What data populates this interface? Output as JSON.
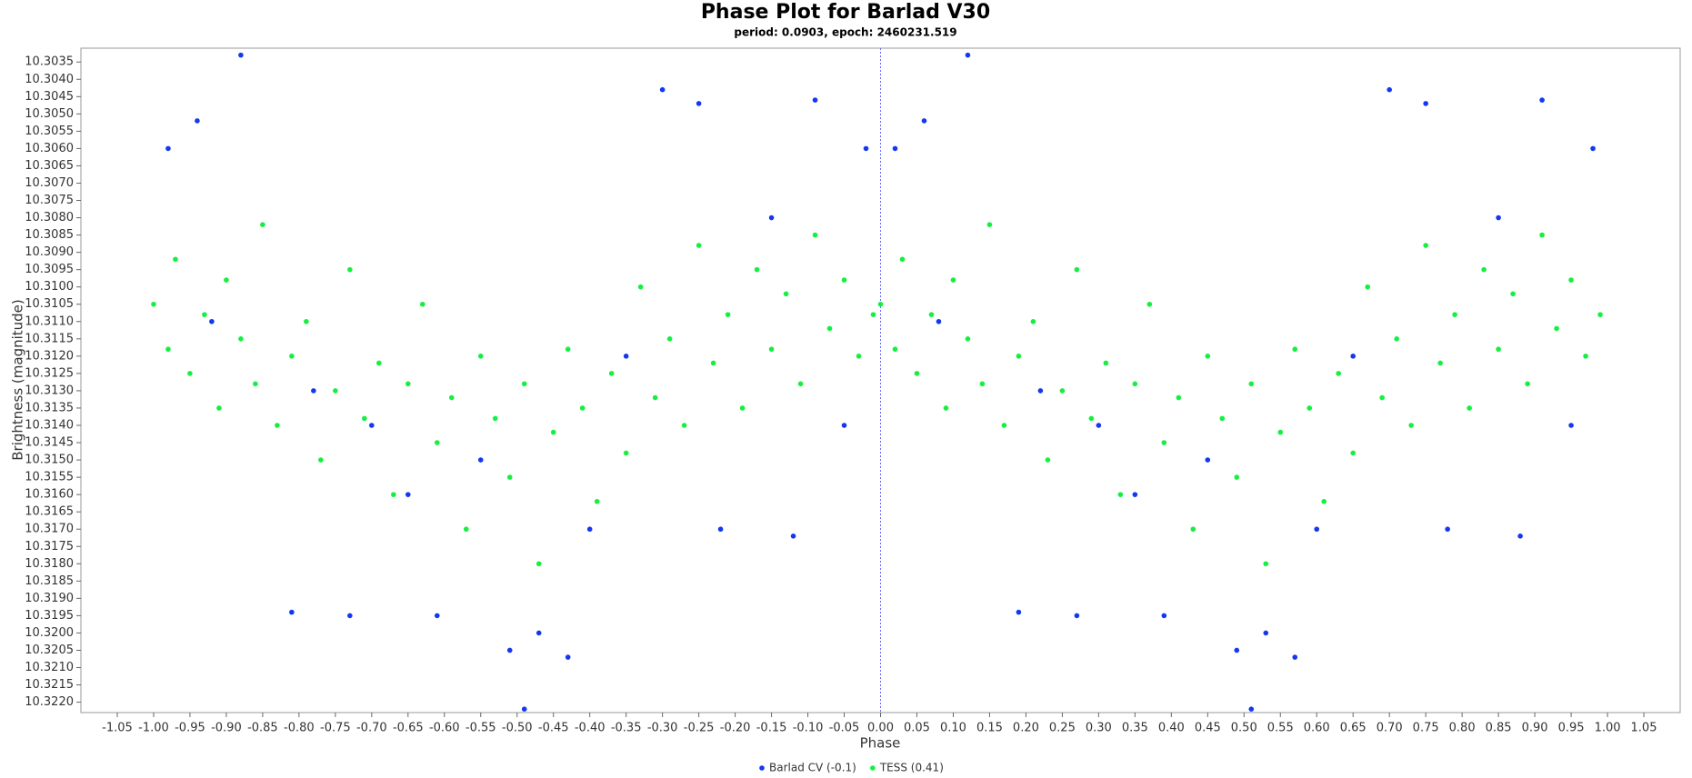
{
  "chart_data": {
    "type": "scatter",
    "title": "Phase Plot for Barlad V30",
    "subtitle": "period: 0.0903, epoch: 2460231.519",
    "x_label": "Phase",
    "y_label": "Brightness (magnitude)",
    "xlim": [
      -1.1,
      1.1
    ],
    "ylim": [
      10.3031,
      10.3223
    ],
    "y_inverted": true,
    "vline": 0,
    "legend": "bottom",
    "xticks": [
      -1.05,
      {
        "value": -1,
        "label": "-1.00"
      },
      -0.95,
      {
        "value": -0.9,
        "label": "-0.90"
      },
      -0.85,
      {
        "value": -0.8,
        "label": "-0.80"
      },
      -0.75,
      {
        "value": -0.7,
        "label": "-0.70"
      },
      -0.65,
      {
        "value": -0.6,
        "label": "-0.60"
      },
      -0.55,
      {
        "value": -0.5,
        "label": "-0.50"
      },
      -0.45,
      {
        "value": -0.4,
        "label": "-0.40"
      },
      -0.35,
      {
        "value": -0.3,
        "label": "-0.30"
      },
      -0.25,
      {
        "value": -0.2,
        "label": "-0.20"
      },
      -0.15,
      {
        "value": -0.1,
        "label": "-0.10"
      },
      -0.05,
      {
        "value": 0,
        "label": "0.00"
      },
      0.05,
      {
        "value": 0.1,
        "label": "0.10"
      },
      0.15,
      {
        "value": 0.2,
        "label": "0.20"
      },
      0.25,
      {
        "value": 0.3,
        "label": "0.30"
      },
      0.35,
      {
        "value": 0.4,
        "label": "0.40"
      },
      0.45,
      {
        "value": 0.5,
        "label": "0.50"
      },
      0.55,
      {
        "value": 0.6,
        "label": "0.60"
      },
      0.65,
      {
        "value": 0.7,
        "label": "0.70"
      },
      0.75,
      {
        "value": 0.8,
        "label": "0.80"
      },
      0.85,
      {
        "value": 0.9,
        "label": "0.90"
      },
      0.95,
      {
        "value": 1,
        "label": "1.00"
      },
      1.05
    ],
    "yticks": [
      10.3035,
      {
        "value": 10.304,
        "label": "10.3040"
      },
      10.3045,
      {
        "value": 10.305,
        "label": "10.3050"
      },
      10.3055,
      {
        "value": 10.306,
        "label": "10.3060"
      },
      10.3065,
      {
        "value": 10.307,
        "label": "10.3070"
      },
      10.3075,
      {
        "value": 10.308,
        "label": "10.3080"
      },
      10.3085,
      {
        "value": 10.309,
        "label": "10.3090"
      },
      10.3095,
      {
        "value": 10.31,
        "label": "10.3100"
      },
      10.3105,
      {
        "value": 10.311,
        "label": "10.3110"
      },
      10.3115,
      {
        "value": 10.312,
        "label": "10.3120"
      },
      10.3125,
      {
        "value": 10.313,
        "label": "10.3130"
      },
      10.3135,
      {
        "value": 10.314,
        "label": "10.3140"
      },
      10.3145,
      {
        "value": 10.315,
        "label": "10.3150"
      },
      10.3155,
      {
        "value": 10.316,
        "label": "10.3160"
      },
      10.3165,
      {
        "value": 10.317,
        "label": "10.3170"
      },
      10.3175,
      {
        "value": 10.318,
        "label": "10.3180"
      },
      10.3185,
      {
        "value": 10.319,
        "label": "10.3190"
      },
      10.3195,
      {
        "value": 10.32,
        "label": "10.3200"
      },
      10.3205,
      {
        "value": 10.321,
        "label": "10.3210"
      },
      10.3215,
      {
        "value": 10.322,
        "label": "10.3220"
      }
    ],
    "series": [
      {
        "name": "TESS (0.41)",
        "color": "#14f040",
        "x": [
          0.0,
          0.02,
          0.03,
          0.05,
          0.07,
          0.09,
          0.1,
          0.12,
          0.14,
          0.15,
          0.17,
          0.19,
          0.21,
          0.23,
          0.25,
          0.27,
          0.29,
          0.31,
          0.33,
          0.35,
          0.37,
          0.39,
          0.41,
          0.43,
          0.45,
          0.47,
          0.49,
          0.51,
          0.53,
          0.55,
          0.57,
          0.59,
          0.61,
          0.63,
          0.65,
          0.67,
          0.69,
          0.71,
          0.73,
          0.75,
          0.77,
          0.79,
          0.81,
          0.83,
          0.85,
          0.87,
          0.89,
          0.91,
          0.93,
          0.95,
          0.97,
          0.99,
          -1.0,
          -0.98,
          -0.97,
          -0.95,
          -0.93,
          -0.91,
          -0.9,
          -0.88,
          -0.86,
          -0.85,
          -0.83,
          -0.81,
          -0.79,
          -0.77,
          -0.75,
          -0.73,
          -0.71,
          -0.69,
          -0.67,
          -0.65,
          -0.63,
          -0.61,
          -0.59,
          -0.57,
          -0.55,
          -0.53,
          -0.51,
          -0.49,
          -0.47,
          -0.45,
          -0.43,
          -0.41,
          -0.39,
          -0.37,
          -0.35,
          -0.33,
          -0.31,
          -0.29,
          -0.27,
          -0.25,
          -0.23,
          -0.21,
          -0.19,
          -0.17,
          -0.15,
          -0.13,
          -0.11,
          -0.09,
          -0.07,
          -0.05,
          -0.03,
          -0.01
        ],
        "values": [
          10.3105,
          10.3118,
          10.3092,
          10.3125,
          10.3108,
          10.3135,
          10.3098,
          10.3115,
          10.3128,
          10.3082,
          10.314,
          10.312,
          10.311,
          10.315,
          10.313,
          10.3095,
          10.3138,
          10.3122,
          10.316,
          10.3128,
          10.3105,
          10.3145,
          10.3132,
          10.317,
          10.312,
          10.3138,
          10.3155,
          10.3128,
          10.318,
          10.3142,
          10.3118,
          10.3135,
          10.3162,
          10.3125,
          10.3148,
          10.31,
          10.3132,
          10.3115,
          10.314,
          10.3088,
          10.3122,
          10.3108,
          10.3135,
          10.3095,
          10.3118,
          10.3102,
          10.3128,
          10.3085,
          10.3112,
          10.3098,
          10.312,
          10.3108,
          10.3105,
          10.3118,
          10.3092,
          10.3125,
          10.3108,
          10.3135,
          10.3098,
          10.3115,
          10.3128,
          10.3082,
          10.314,
          10.312,
          10.311,
          10.315,
          10.313,
          10.3095,
          10.3138,
          10.3122,
          10.316,
          10.3128,
          10.3105,
          10.3145,
          10.3132,
          10.317,
          10.312,
          10.3138,
          10.3155,
          10.3128,
          10.318,
          10.3142,
          10.3118,
          10.3135,
          10.3162,
          10.3125,
          10.3148,
          10.31,
          10.3132,
          10.3115,
          10.314,
          10.3088,
          10.3122,
          10.3108,
          10.3135,
          10.3095,
          10.3118,
          10.3102,
          10.3128,
          10.3085,
          10.3112,
          10.3098,
          10.312,
          10.3108
        ]
      },
      {
        "name": "Barlad CV (-0.1)",
        "color": "#1438f0",
        "x": [
          0.12,
          0.51,
          0.7,
          0.75,
          0.53,
          0.49,
          0.57,
          0.27,
          0.19,
          0.39,
          0.91,
          0.06,
          0.08,
          0.3,
          0.45,
          0.6,
          0.65,
          0.85,
          0.98,
          0.02,
          0.35,
          0.78,
          0.88,
          0.95,
          0.22,
          -0.88,
          -0.49,
          -0.3,
          -0.25,
          -0.47,
          -0.51,
          -0.43,
          -0.73,
          -0.81,
          -0.61,
          -0.09,
          -0.94,
          -0.92,
          -0.7,
          -0.55,
          -0.4,
          -0.35,
          -0.15,
          -0.02,
          -0.98,
          -0.65,
          -0.22,
          -0.12,
          -0.05,
          -0.78
        ],
        "values": [
          10.3033,
          10.3222,
          10.3043,
          10.3047,
          10.32,
          10.3205,
          10.3207,
          10.3195,
          10.3194,
          10.3195,
          10.3046,
          10.3052,
          10.311,
          10.314,
          10.315,
          10.317,
          10.312,
          10.308,
          10.306,
          10.306,
          10.316,
          10.317,
          10.3172,
          10.314,
          10.313,
          10.3033,
          10.3222,
          10.3043,
          10.3047,
          10.32,
          10.3205,
          10.3207,
          10.3195,
          10.3194,
          10.3195,
          10.3046,
          10.3052,
          10.311,
          10.314,
          10.315,
          10.317,
          10.312,
          10.308,
          10.306,
          10.306,
          10.316,
          10.317,
          10.3172,
          10.314,
          10.313
        ]
      }
    ]
  }
}
